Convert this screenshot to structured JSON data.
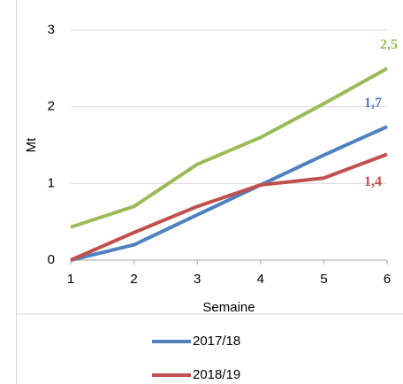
{
  "chart_data": {
    "type": "line",
    "x": [
      1,
      2,
      3,
      4,
      5,
      6
    ],
    "xlim": [
      1,
      6
    ],
    "xticks": [
      1,
      2,
      3,
      4,
      5,
      6
    ],
    "ylim": [
      0,
      3
    ],
    "yticks": [
      0,
      1,
      2,
      3
    ],
    "xlabel": "Semaine",
    "ylabel": "Mt",
    "grid": true,
    "series": [
      {
        "name": "2017/18",
        "color": "#4f81bd",
        "values": [
          0,
          0.2,
          0.59,
          0.98,
          1.37,
          1.74
        ],
        "value_labels": [
          null,
          null,
          null,
          null,
          null,
          "1,7"
        ]
      },
      {
        "name": "2018/19",
        "color": "#c0504d",
        "values": [
          0,
          0.36,
          0.7,
          0.98,
          1.07,
          1.38
        ],
        "value_labels": [
          null,
          null,
          null,
          null,
          null,
          "1,4"
        ]
      },
      {
        "color": "#9bbb59",
        "values": [
          0.43,
          0.7,
          1.25,
          1.6,
          2.04,
          2.5
        ],
        "value_labels": [
          null,
          null,
          null,
          null,
          null,
          "2,5"
        ]
      }
    ]
  }
}
